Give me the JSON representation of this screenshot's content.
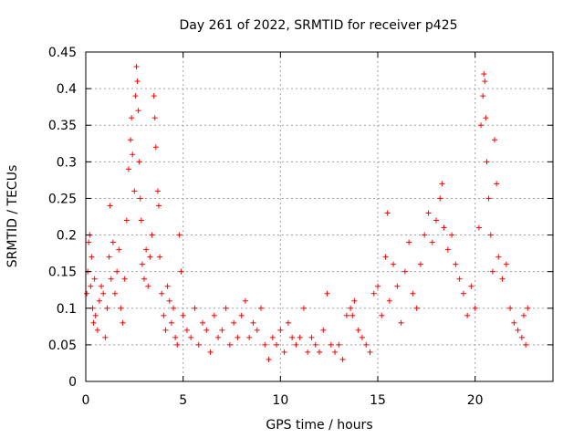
{
  "chart_data": {
    "type": "scatter",
    "title": "Day 261 of 2022, SRMTID for receiver p425",
    "xlabel": "GPS time / hours",
    "ylabel": "SRMTID / TECUs",
    "xlim": [
      0,
      24
    ],
    "ylim": [
      0,
      0.45
    ],
    "x_ticks": [
      0,
      5,
      10,
      15,
      20
    ],
    "x_tick_labels": [
      "0",
      "5",
      "10",
      "15",
      "20"
    ],
    "y_ticks": [
      0,
      0.05,
      0.1,
      0.15,
      0.2,
      0.25,
      0.3,
      0.35,
      0.4,
      0.45
    ],
    "y_tick_labels": [
      "0",
      "0.05",
      "0.1",
      "0.15",
      "0.2",
      "0.25",
      "0.3",
      "0.35",
      "0.4",
      "0.45"
    ],
    "grid": true,
    "marker": "+",
    "color": "#ff0000",
    "series": [
      {
        "name": "SRMTID",
        "points": [
          [
            0.05,
            0.12
          ],
          [
            0.1,
            0.15
          ],
          [
            0.15,
            0.19
          ],
          [
            0.2,
            0.2
          ],
          [
            0.25,
            0.13
          ],
          [
            0.3,
            0.17
          ],
          [
            0.35,
            0.1
          ],
          [
            0.4,
            0.08
          ],
          [
            0.45,
            0.14
          ],
          [
            0.5,
            0.09
          ],
          [
            0.6,
            0.07
          ],
          [
            0.7,
            0.11
          ],
          [
            0.8,
            0.13
          ],
          [
            0.9,
            0.12
          ],
          [
            1.0,
            0.06
          ],
          [
            1.1,
            0.1
          ],
          [
            1.2,
            0.17
          ],
          [
            1.25,
            0.24
          ],
          [
            1.3,
            0.14
          ],
          [
            1.4,
            0.19
          ],
          [
            1.5,
            0.12
          ],
          [
            1.6,
            0.15
          ],
          [
            1.7,
            0.18
          ],
          [
            1.8,
            0.1
          ],
          [
            1.9,
            0.08
          ],
          [
            2.0,
            0.14
          ],
          [
            2.1,
            0.22
          ],
          [
            2.2,
            0.29
          ],
          [
            2.3,
            0.33
          ],
          [
            2.35,
            0.36
          ],
          [
            2.4,
            0.31
          ],
          [
            2.5,
            0.26
          ],
          [
            2.55,
            0.39
          ],
          [
            2.6,
            0.43
          ],
          [
            2.65,
            0.41
          ],
          [
            2.7,
            0.37
          ],
          [
            2.75,
            0.3
          ],
          [
            2.8,
            0.25
          ],
          [
            2.85,
            0.22
          ],
          [
            2.9,
            0.16
          ],
          [
            3.0,
            0.14
          ],
          [
            3.1,
            0.18
          ],
          [
            3.2,
            0.13
          ],
          [
            3.3,
            0.17
          ],
          [
            3.4,
            0.2
          ],
          [
            3.5,
            0.39
          ],
          [
            3.55,
            0.36
          ],
          [
            3.6,
            0.32
          ],
          [
            3.7,
            0.26
          ],
          [
            3.75,
            0.24
          ],
          [
            3.8,
            0.17
          ],
          [
            3.9,
            0.12
          ],
          [
            4.0,
            0.09
          ],
          [
            4.1,
            0.07
          ],
          [
            4.2,
            0.13
          ],
          [
            4.3,
            0.11
          ],
          [
            4.4,
            0.08
          ],
          [
            4.5,
            0.1
          ],
          [
            4.6,
            0.06
          ],
          [
            4.7,
            0.05
          ],
          [
            4.8,
            0.2
          ],
          [
            4.9,
            0.15
          ],
          [
            5.0,
            0.09
          ],
          [
            5.2,
            0.07
          ],
          [
            5.4,
            0.06
          ],
          [
            5.6,
            0.1
          ],
          [
            5.8,
            0.05
          ],
          [
            6.0,
            0.08
          ],
          [
            6.2,
            0.07
          ],
          [
            6.4,
            0.04
          ],
          [
            6.6,
            0.09
          ],
          [
            6.8,
            0.06
          ],
          [
            7.0,
            0.07
          ],
          [
            7.2,
            0.1
          ],
          [
            7.4,
            0.05
          ],
          [
            7.6,
            0.08
          ],
          [
            7.8,
            0.06
          ],
          [
            8.0,
            0.09
          ],
          [
            8.2,
            0.11
          ],
          [
            8.4,
            0.06
          ],
          [
            8.6,
            0.08
          ],
          [
            8.8,
            0.07
          ],
          [
            9.0,
            0.1
          ],
          [
            9.2,
            0.05
          ],
          [
            9.4,
            0.03
          ],
          [
            9.6,
            0.06
          ],
          [
            9.8,
            0.05
          ],
          [
            10.0,
            0.07
          ],
          [
            10.2,
            0.04
          ],
          [
            10.4,
            0.08
          ],
          [
            10.6,
            0.06
          ],
          [
            10.8,
            0.05
          ],
          [
            11.0,
            0.06
          ],
          [
            11.2,
            0.1
          ],
          [
            11.4,
            0.04
          ],
          [
            11.6,
            0.06
          ],
          [
            11.8,
            0.05
          ],
          [
            12.0,
            0.04
          ],
          [
            12.2,
            0.07
          ],
          [
            12.4,
            0.12
          ],
          [
            12.6,
            0.05
          ],
          [
            12.8,
            0.04
          ],
          [
            13.0,
            0.05
          ],
          [
            13.2,
            0.03
          ],
          [
            13.4,
            0.09
          ],
          [
            13.6,
            0.1
          ],
          [
            13.7,
            0.09
          ],
          [
            13.8,
            0.11
          ],
          [
            14.0,
            0.07
          ],
          [
            14.2,
            0.06
          ],
          [
            14.4,
            0.05
          ],
          [
            14.6,
            0.04
          ],
          [
            14.8,
            0.12
          ],
          [
            15.0,
            0.13
          ],
          [
            15.2,
            0.09
          ],
          [
            15.4,
            0.17
          ],
          [
            15.5,
            0.23
          ],
          [
            15.6,
            0.11
          ],
          [
            15.8,
            0.16
          ],
          [
            16.0,
            0.13
          ],
          [
            16.2,
            0.08
          ],
          [
            16.4,
            0.15
          ],
          [
            16.6,
            0.19
          ],
          [
            16.8,
            0.12
          ],
          [
            17.0,
            0.1
          ],
          [
            17.2,
            0.16
          ],
          [
            17.4,
            0.2
          ],
          [
            17.6,
            0.23
          ],
          [
            17.8,
            0.19
          ],
          [
            18.0,
            0.22
          ],
          [
            18.2,
            0.25
          ],
          [
            18.3,
            0.27
          ],
          [
            18.4,
            0.21
          ],
          [
            18.6,
            0.18
          ],
          [
            18.8,
            0.2
          ],
          [
            19.0,
            0.16
          ],
          [
            19.2,
            0.14
          ],
          [
            19.4,
            0.12
          ],
          [
            19.6,
            0.09
          ],
          [
            19.8,
            0.13
          ],
          [
            20.0,
            0.1
          ],
          [
            20.2,
            0.21
          ],
          [
            20.3,
            0.35
          ],
          [
            20.4,
            0.39
          ],
          [
            20.45,
            0.42
          ],
          [
            20.5,
            0.41
          ],
          [
            20.55,
            0.36
          ],
          [
            20.6,
            0.3
          ],
          [
            20.7,
            0.25
          ],
          [
            20.8,
            0.2
          ],
          [
            20.9,
            0.15
          ],
          [
            21.0,
            0.33
          ],
          [
            21.1,
            0.27
          ],
          [
            21.2,
            0.17
          ],
          [
            21.4,
            0.14
          ],
          [
            21.6,
            0.16
          ],
          [
            21.8,
            0.1
          ],
          [
            22.0,
            0.08
          ],
          [
            22.2,
            0.07
          ],
          [
            22.4,
            0.06
          ],
          [
            22.5,
            0.09
          ],
          [
            22.6,
            0.05
          ],
          [
            22.7,
            0.1
          ]
        ]
      }
    ]
  }
}
